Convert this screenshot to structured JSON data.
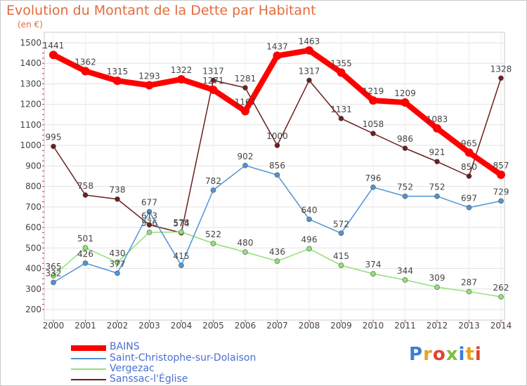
{
  "title": "Evolution du Montant de la Dette par Habitant",
  "unit_label": "(en €)",
  "logo_text": "Proxiti",
  "chart_data": {
    "type": "line",
    "title": "Evolution du Montant de la Dette par Habitant",
    "ylabel": "(en €)",
    "xlabel": "",
    "ylim": [
      200,
      1500
    ],
    "yticks": [
      200,
      300,
      400,
      500,
      600,
      700,
      800,
      900,
      1000,
      1100,
      1200,
      1300,
      1400,
      1500
    ],
    "grid": true,
    "legend_position": "bottom-left",
    "x": [
      "2000",
      "2001",
      "2002",
      "2003",
      "2004",
      "2005",
      "2006",
      "2007",
      "2008",
      "2009",
      "2010",
      "2011",
      "2012",
      "2013",
      "2014"
    ],
    "series": [
      {
        "name": "BAINS",
        "color": "#ff0000",
        "values": [
          1441,
          1362,
          1315,
          1293,
          1322,
          1271,
          1167,
          1437,
          1463,
          1355,
          1219,
          1209,
          1083,
          965,
          857
        ]
      },
      {
        "name": "Saint-Christophe-sur-Dolaison",
        "color": "#4f94d1",
        "values": [
          332,
          426,
          377,
          677,
          415,
          782,
          902,
          856,
          640,
          572,
          796,
          752,
          752,
          697,
          729
        ]
      },
      {
        "name": "Vergezac",
        "color": "#90e07a",
        "values": [
          365,
          501,
          430,
          576,
          578,
          522,
          480,
          436,
          496,
          415,
          374,
          344,
          309,
          287,
          262
        ]
      },
      {
        "name": "Sanssac-l'Église",
        "color": "#6b1e1e",
        "values": [
          995,
          758,
          738,
          613,
          574,
          1317,
          1281,
          1000,
          1317,
          1131,
          1058,
          986,
          921,
          850,
          1328
        ]
      }
    ]
  }
}
